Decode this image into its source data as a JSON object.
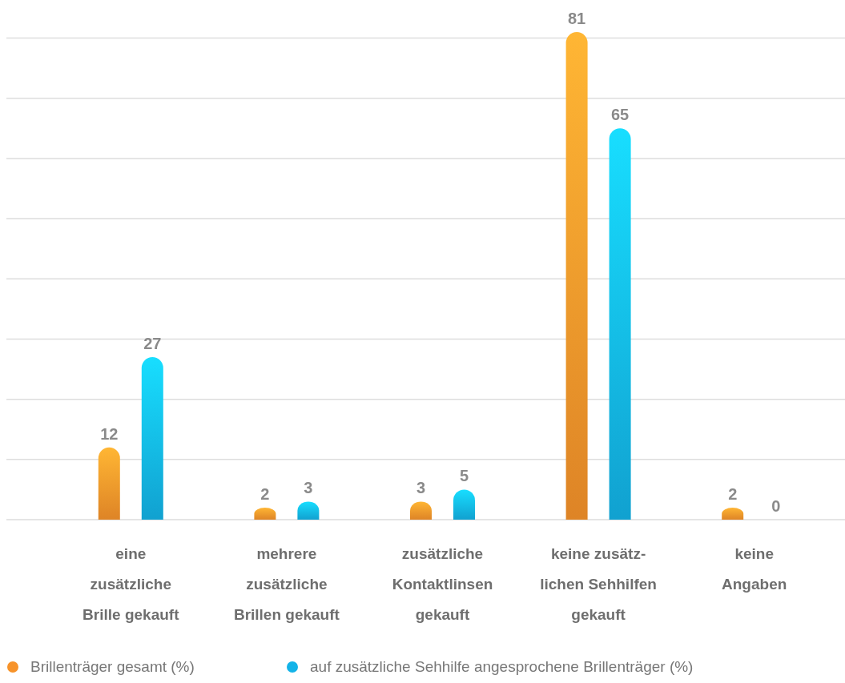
{
  "chart_data": {
    "type": "bar",
    "categories": [
      "eine\nzusätzliche\nBrille gekauft",
      "mehrere\nzusätzliche\nBrillen gekauft",
      "zusätzliche\nKontaktlinsen\ngekauft",
      "keine zusätz-\nlichen Sehhilfen\ngekauft",
      "keine\nAngaben"
    ],
    "series": [
      {
        "name": "Brillenträger gesamt (%)",
        "color": "#f7932a",
        "values": [
          12,
          2,
          3,
          81,
          2
        ]
      },
      {
        "name": "auf zusätzliche Sehhilfe angesprochene Brillenträger (%)",
        "color": "#13b3e8",
        "values": [
          27,
          3,
          5,
          65,
          0
        ]
      }
    ],
    "yticks": [
      {
        "value": 0,
        "label": null
      },
      {
        "value": 10,
        "label": null
      },
      {
        "value": 20,
        "label": null
      },
      {
        "value": 30,
        "label": null
      },
      {
        "value": 40,
        "label": null
      },
      {
        "value": 50,
        "label": null
      },
      {
        "value": 60,
        "label": null
      },
      {
        "value": 70,
        "label": null
      },
      {
        "value": 80,
        "label": null
      }
    ],
    "grid": "y",
    "data_labels": true,
    "legend": "bottom",
    "tick_labels": "x"
  }
}
